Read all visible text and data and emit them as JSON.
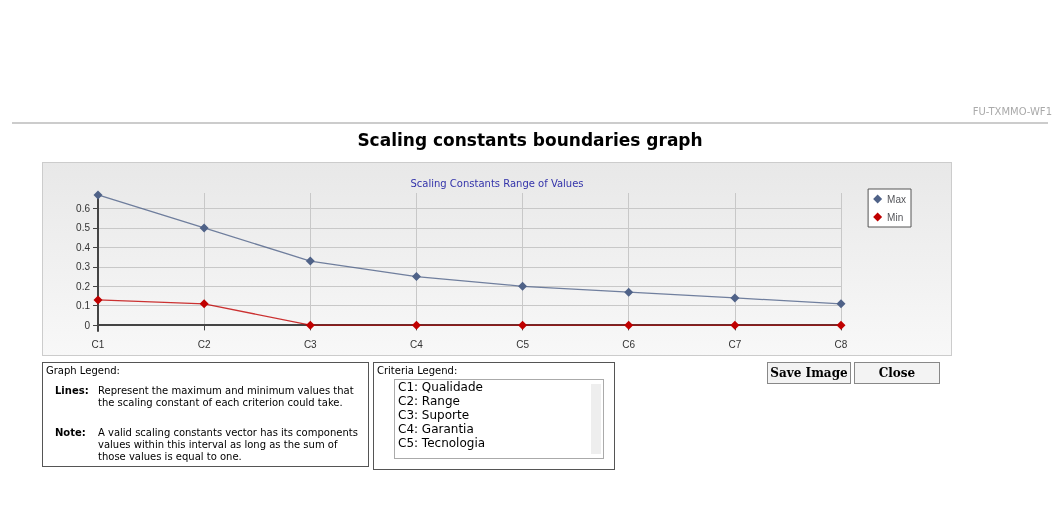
{
  "chart_data": {
    "type": "line",
    "title": "Scaling Constants Range of Values",
    "subtitle": "Scaling constants boundaries graph",
    "categories": [
      "C1",
      "C2",
      "C3",
      "C4",
      "C5",
      "C6",
      "C7",
      "C8"
    ],
    "series": [
      {
        "name": "Max",
        "color": "#4f6288",
        "values": [
          0.67,
          0.5,
          0.33,
          0.25,
          0.2,
          0.17,
          0.14,
          0.11
        ]
      },
      {
        "name": "Min",
        "color": "#c00000",
        "values": [
          0.13,
          0.11,
          0,
          0,
          0,
          0,
          0,
          0
        ]
      }
    ],
    "ylim": [
      -0.03,
      0.68
    ],
    "yticks": [
      0,
      0.1,
      0.2,
      0.3,
      0.4,
      0.5,
      0.6
    ],
    "grid": true,
    "legend": "top right",
    "marker": "diamond",
    "line_style": "solid",
    "annotations": [
      "FU-TXMMO-WF1",
      "Graph Legend:",
      "Lines:",
      "Represent the maximum and minimum values that the scaling constant of each criterion could take.",
      "Note:",
      "A valid scaling constants vector has its components values within this interval as long as the sum of those values is equal to one.",
      "Criteria Legend:",
      "C1: Qualidade",
      "C2: Range",
      "C3: Suporte",
      "C4: Garantia",
      "C5: Tecnologia",
      "Save Image",
      "Close"
    ]
  }
}
